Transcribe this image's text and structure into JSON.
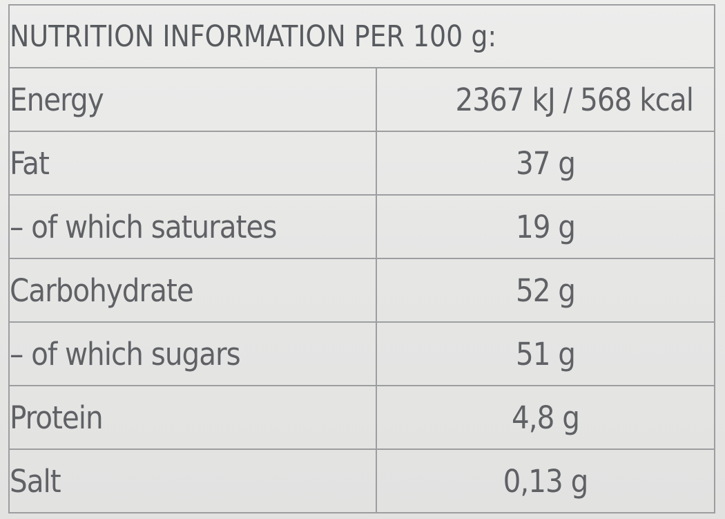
{
  "title": "NUTRITION INFORMATION PER 100 g:",
  "rows": [
    {
      "label": "Energy",
      "value": "2367 kJ / 568 kcal"
    },
    {
      "label": "Fat",
      "value": "37 g"
    },
    {
      "label": "– of which saturates",
      "value": "19 g"
    },
    {
      "label": "Carbohydrate",
      "value": "52 g"
    },
    {
      "label": "– of which sugars",
      "value": "51 g"
    },
    {
      "label": "Protein",
      "value": "4,8 g"
    },
    {
      "label": "Salt",
      "value": "0,13 g"
    }
  ]
}
